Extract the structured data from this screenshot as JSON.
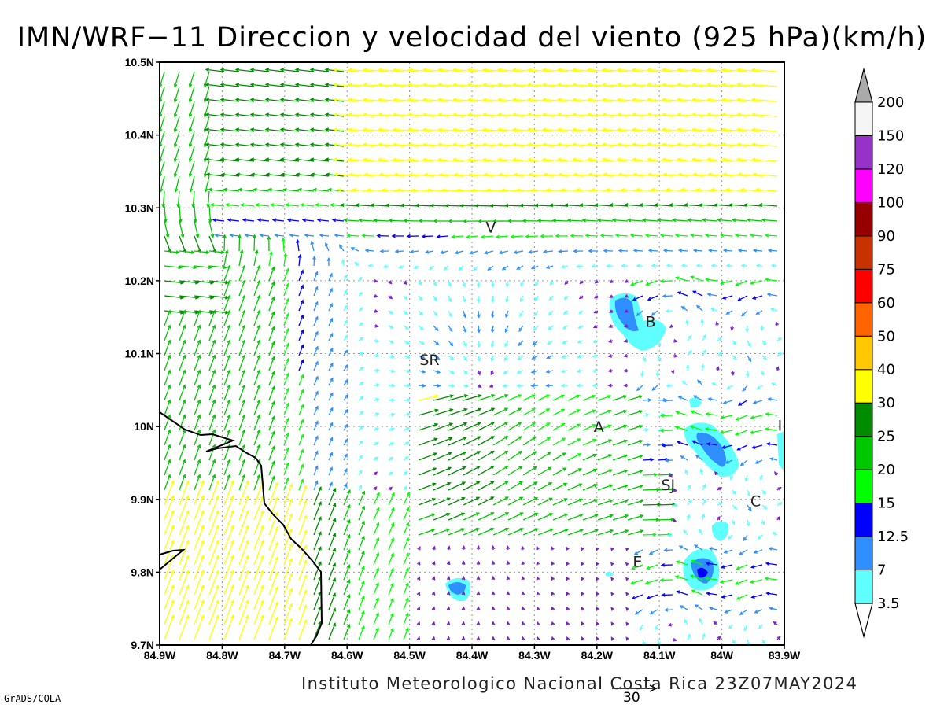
{
  "title": "IMN/WRF−11 Direccion y velocidad del viento (925 hPa)(km/h)",
  "footer": "Instituto Meteorologico Nacional Costa Rica 23Z07MAY2024",
  "software_label": "GrADS/COLA",
  "reference_vector": {
    "label": "30",
    "speed_kmh": 30
  },
  "map": {
    "lon_range": [
      -84.9,
      -83.9
    ],
    "lat_range": [
      9.7,
      10.5
    ],
    "lon_ticks": [
      "84.9W",
      "84.8W",
      "84.7W",
      "84.6W",
      "84.5W",
      "84.4W",
      "84.3W",
      "84.2W",
      "84.1W",
      "84W",
      "83.9W"
    ],
    "lat_ticks": [
      "9.7N",
      "9.8N",
      "9.9N",
      "10N",
      "10.1N",
      "10.2N",
      "10.3N",
      "10.4N",
      "10.5N"
    ],
    "gridlines": "dotted",
    "places": [
      {
        "label": "V",
        "lon": -84.37,
        "lat": 10.274
      },
      {
        "label": "B",
        "lon": -84.114,
        "lat": 10.144
      },
      {
        "label": "SR",
        "lon": -84.468,
        "lat": 10.092
      },
      {
        "label": "A",
        "lon": -84.197,
        "lat": 10.0
      },
      {
        "label": "SJ",
        "lon": -84.086,
        "lat": 9.92
      },
      {
        "label": "C",
        "lon": -83.946,
        "lat": 9.898
      },
      {
        "label": "E",
        "lon": -84.135,
        "lat": 9.815
      },
      {
        "label": "I",
        "lon": -83.907,
        "lat": 10.002
      }
    ]
  },
  "colorbar": {
    "labels": [
      "3.5",
      "7",
      "12.5",
      "15",
      "20",
      "25",
      "30",
      "40",
      "50",
      "60",
      "75",
      "90",
      "100",
      "120",
      "150",
      "200"
    ],
    "colors": [
      "#5fffff",
      "#2f8fff",
      "#0000ff",
      "#00ff00",
      "#00c800",
      "#008c00",
      "#ffff00",
      "#ffc800",
      "#ff6400",
      "#ff0000",
      "#c83200",
      "#960000",
      "#ff00ff",
      "#9632c8",
      "#f5f5f5"
    ],
    "over_color": "#aaaaaa"
  }
}
